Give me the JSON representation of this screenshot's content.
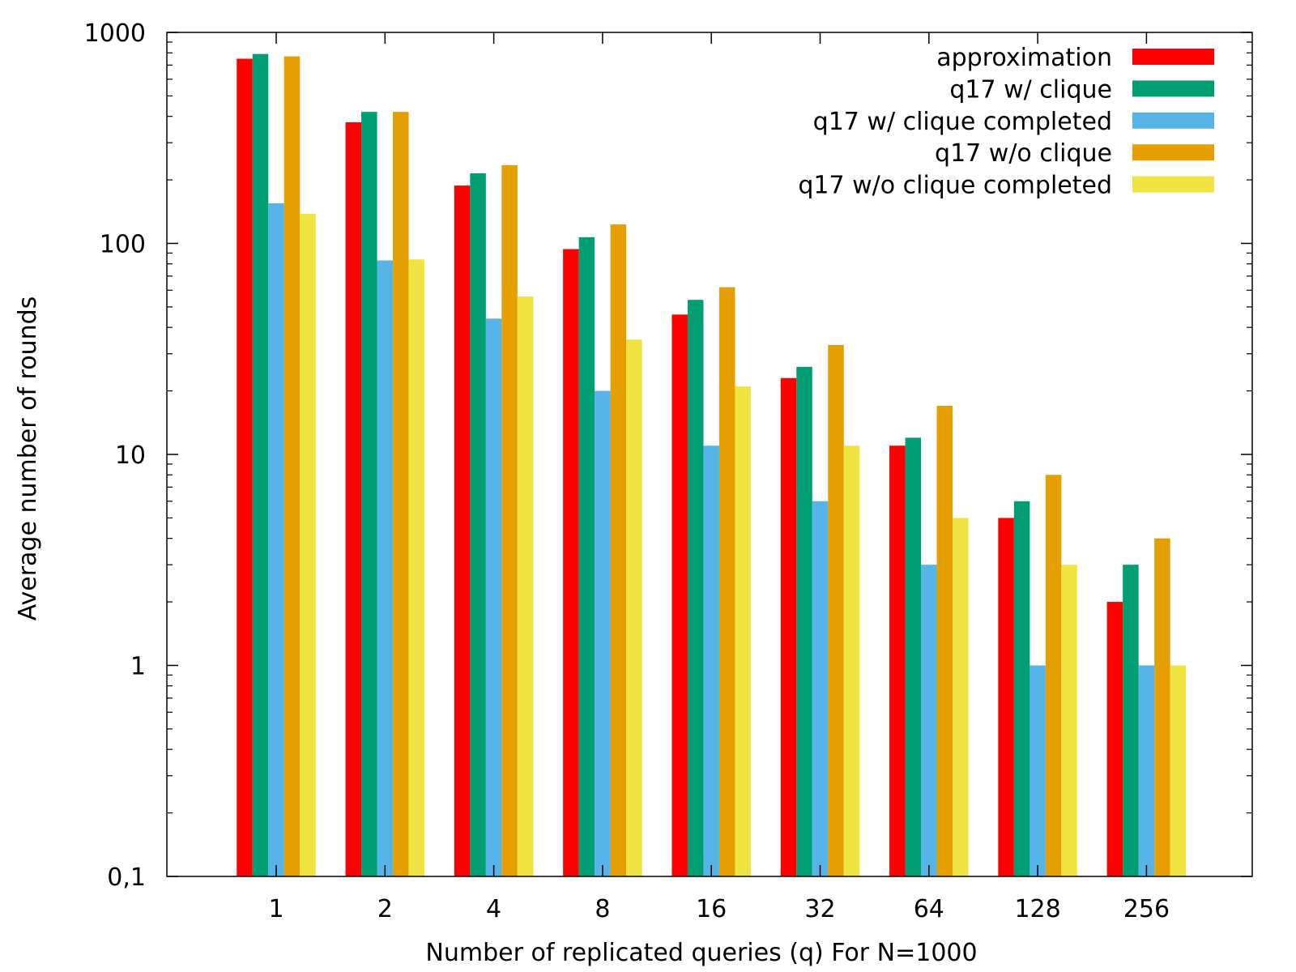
{
  "chart_data": {
    "type": "bar",
    "title": "",
    "xlabel": "Number of replicated queries (q) For N=1000",
    "ylabel": "Average number of rounds",
    "yscale": "log",
    "ylim": [
      0.1,
      1000
    ],
    "yticks": [
      {
        "value": 0.1,
        "label": "0,1"
      },
      {
        "value": 1,
        "label": "1"
      },
      {
        "value": 10,
        "label": "10"
      },
      {
        "value": 100,
        "label": "100"
      },
      {
        "value": 1000,
        "label": "1000"
      }
    ],
    "categories": [
      "1",
      "2",
      "4",
      "8",
      "16",
      "32",
      "64",
      "128",
      "256"
    ],
    "grid": false,
    "legend_position": "top-right",
    "series": [
      {
        "name": "approximation",
        "color": "#ff0000",
        "values": [
          750,
          375,
          188,
          94,
          46,
          23,
          11,
          5,
          2
        ]
      },
      {
        "name": "q17 w/ clique",
        "color": "#009e73",
        "values": [
          790,
          420,
          215,
          107,
          54,
          26,
          12,
          6,
          3
        ]
      },
      {
        "name": "q17 w/ clique completed",
        "color": "#56b4e9",
        "values": [
          155,
          83,
          44,
          20,
          11,
          6,
          3,
          1,
          1
        ]
      },
      {
        "name": "q17 w/o clique",
        "color": "#e69f00",
        "values": [
          770,
          420,
          235,
          123,
          62,
          33,
          17,
          8,
          4
        ]
      },
      {
        "name": "q17 w/o clique completed",
        "color": "#f0e442",
        "values": [
          138,
          84,
          56,
          35,
          21,
          11,
          5,
          3,
          1
        ]
      }
    ]
  }
}
